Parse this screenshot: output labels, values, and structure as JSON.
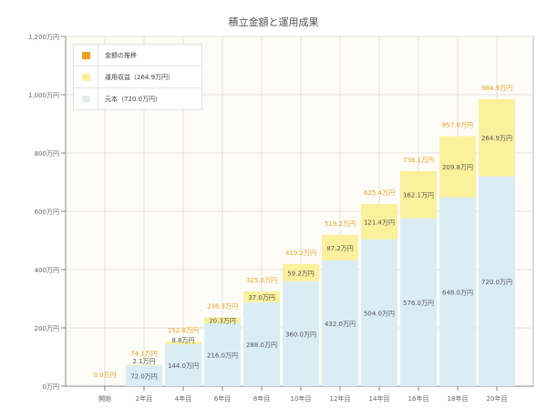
{
  "chart_data": {
    "type": "bar",
    "stacked": true,
    "title": "積立金額と運用成果",
    "categories": [
      "開始",
      "2年目",
      "4年目",
      "6年目",
      "8年目",
      "10年目",
      "12年目",
      "14年目",
      "16年目",
      "18年目",
      "20年目"
    ],
    "series": [
      {
        "name": "元本（720.0万円）",
        "color": "#daedf5",
        "values": [
          0,
          72,
          144,
          216,
          288,
          360,
          432,
          504,
          576,
          648,
          720
        ],
        "labels": [
          "",
          "72.0万円",
          "144.0万円",
          "216.0万円",
          "288.0万円",
          "360.0万円",
          "432.0万円",
          "504.0万円",
          "576.0万円",
          "648.0万円",
          "720.0万円"
        ]
      },
      {
        "name": "運用収益（264.9万円）",
        "color": "#fbf09c",
        "values": [
          0,
          2.1,
          8.8,
          20.3,
          37.0,
          59.2,
          87.2,
          121.4,
          162.1,
          209.8,
          264.9
        ],
        "labels": [
          "",
          "2.1万円",
          "8.8万円",
          "20.3万円",
          "37.0万円",
          "59.2万円",
          "87.2万円",
          "121.4万円",
          "162.1万円",
          "209.8万円",
          "264.9万円"
        ]
      }
    ],
    "totals": {
      "name": "金額の推移",
      "color": "#f0a020",
      "values": [
        0,
        74.1,
        152.8,
        236.3,
        325.0,
        419.2,
        519.2,
        625.4,
        738.1,
        857.8,
        984.9
      ],
      "labels": [
        "0.0万円",
        "74.1万円",
        "152.8万円",
        "236.3万円",
        "325.0万円",
        "419.2万円",
        "519.2万円",
        "625.4万円",
        "738.1万円",
        "857.8万円",
        "984.9万円"
      ]
    },
    "ylim": [
      0,
      1200
    ],
    "yticks": [
      0,
      200,
      400,
      600,
      800,
      1000,
      1200
    ],
    "ytick_labels": [
      "0万円",
      "200万円",
      "400万円",
      "600万円",
      "800万円",
      "1,000万円",
      "1,200万円"
    ],
    "grid": true,
    "legend": "top-left"
  }
}
